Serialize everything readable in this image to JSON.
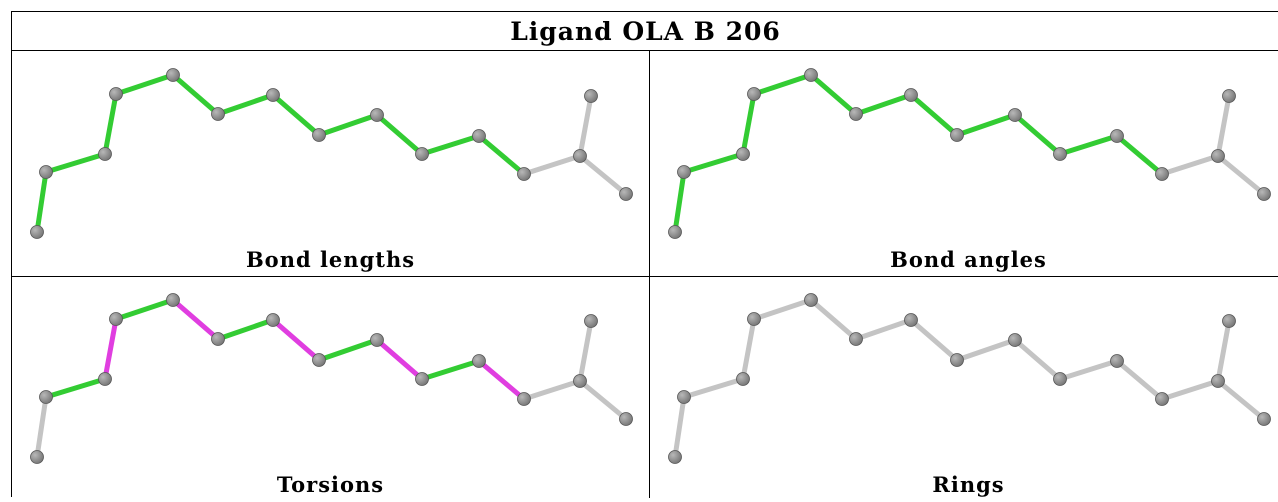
{
  "title": "Ligand OLA B 206",
  "colors": {
    "ok": "#33cc33",
    "flag": "#e03ee0",
    "neutral": "#c4c4c4",
    "atom": "#7a7a7a"
  },
  "panels": [
    {
      "caption": "Bond lengths",
      "bond_states": [
        "ok",
        "ok",
        "ok",
        "ok",
        "ok",
        "ok",
        "ok",
        "ok",
        "ok",
        "ok",
        "ok",
        "neutral",
        "neutral",
        "neutral",
        "neutral"
      ]
    },
    {
      "caption": "Bond angles",
      "bond_states": [
        "ok",
        "ok",
        "ok",
        "ok",
        "ok",
        "ok",
        "ok",
        "ok",
        "ok",
        "ok",
        "ok",
        "neutral",
        "neutral",
        "neutral",
        "neutral"
      ]
    },
    {
      "caption": "Torsions",
      "bond_states": [
        "neutral",
        "ok",
        "flag",
        "ok",
        "flag",
        "ok",
        "flag",
        "ok",
        "flag",
        "ok",
        "flag",
        "neutral",
        "neutral",
        "neutral",
        "neutral"
      ]
    },
    {
      "caption": "Rings",
      "bond_states": [
        "neutral",
        "neutral",
        "neutral",
        "neutral",
        "neutral",
        "neutral",
        "neutral",
        "neutral",
        "neutral",
        "neutral",
        "neutral",
        "neutral",
        "neutral",
        "neutral",
        "neutral"
      ]
    }
  ]
}
